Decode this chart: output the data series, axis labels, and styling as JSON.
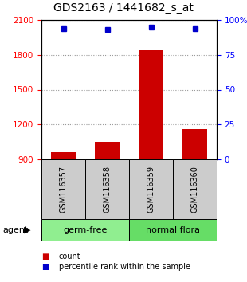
{
  "title": "GDS2163 / 1441682_s_at",
  "samples": [
    "GSM116357",
    "GSM116358",
    "GSM116359",
    "GSM116360"
  ],
  "counts": [
    960,
    1050,
    1840,
    1160
  ],
  "percentiles": [
    94,
    93,
    95,
    94
  ],
  "ylim_left": [
    900,
    2100
  ],
  "ylim_right": [
    0,
    100
  ],
  "yticks_left": [
    900,
    1200,
    1500,
    1800,
    2100
  ],
  "yticks_right": [
    0,
    25,
    50,
    75,
    100
  ],
  "bar_color": "#cc0000",
  "dot_color": "#0000cc",
  "bar_width": 0.55,
  "groups": [
    {
      "label": "germ-free",
      "samples": [
        0,
        1
      ],
      "color": "#90ee90"
    },
    {
      "label": "normal flora",
      "samples": [
        2,
        3
      ],
      "color": "#66dd66"
    }
  ],
  "xlabel_agent": "agent",
  "legend_count_label": "count",
  "legend_pct_label": "percentile rank within the sample",
  "grid_color": "#888888",
  "sample_box_color": "#cccccc",
  "title_fontsize": 10,
  "tick_fontsize": 7.5,
  "label_fontsize": 8
}
